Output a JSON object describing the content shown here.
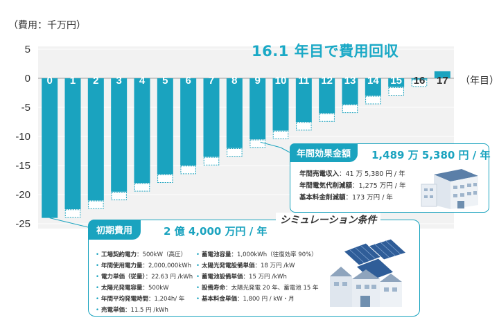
{
  "chart_data": {
    "type": "bar",
    "unit_label": "（費用：千万円）",
    "categories": [
      "0",
      "1",
      "2",
      "3",
      "4",
      "5",
      "6",
      "7",
      "8",
      "9",
      "10",
      "11",
      "12",
      "13",
      "14",
      "15",
      "16",
      "17"
    ],
    "values": [
      -24.0,
      -22.5,
      -21.0,
      -19.5,
      -18.0,
      -16.5,
      -15.0,
      -13.5,
      -12.0,
      -10.5,
      -9.0,
      -7.5,
      -6.0,
      -4.5,
      -3.0,
      -1.5,
      -0.2,
      1.2
    ],
    "annual_increment": 1.49,
    "ylim": [
      -25,
      5
    ],
    "yticks": [
      5,
      0,
      -5,
      -10,
      -15,
      -20,
      -25
    ],
    "ytick_labels": [
      "5",
      "0",
      "-5",
      "-10",
      "-15",
      "-20",
      "-25"
    ],
    "xlabel": "（年目）",
    "annotation": "16.1 年目で費用回収",
    "colors": {
      "bar": "#1aa3bf",
      "increment_outline": "#1aa3bf",
      "plot_bg": "#f2f2f2",
      "grid": "#ffffff"
    }
  },
  "annual_effect": {
    "tag": "年間効果金額",
    "total": "1,489 万 5,380 円 / 年",
    "lines": [
      {
        "label": "年間売電収入",
        "value": "：41 万 5,380 円 / 年"
      },
      {
        "label": "年間電気代削減額",
        "value": "：1,275 万円 / 年"
      },
      {
        "label": "基本料金削減額",
        "value": "：173 万円 / 年"
      }
    ]
  },
  "initial_cost": {
    "tag": "初期費用",
    "total": "2 億 4,000 万円 / 年"
  },
  "conditions": {
    "title": "シミュレーション条件",
    "left": [
      {
        "label": "工場契約電力",
        "value": "：500kW（高圧）"
      },
      {
        "label": "年間使用電力量",
        "value": "：2,000,000kWh"
      },
      {
        "label": "電力単価（従量）",
        "value": "：22.63 円 /kWh"
      },
      {
        "label": "太陽光発電容量",
        "value": "：500kW"
      },
      {
        "label": "年間平均発電時間",
        "value": "：1,204h/ 年"
      },
      {
        "label": "売電単価",
        "value": "：11.5 円 /kWh"
      }
    ],
    "right": [
      {
        "label": "蓄電池容量",
        "value": "：1,000kWh（往復効率 90%）"
      },
      {
        "label": "太陽光発電設備単価",
        "value": "：18 万円 /kW"
      },
      {
        "label": "蓄電池設備単価",
        "value": "：15 万円 /kWh"
      },
      {
        "label": "設備寿命",
        "value": "：太陽光発電 20 年、蓄電池 15 年"
      },
      {
        "label": "基本料金単価",
        "value": "：1,800 円 / kW・月"
      }
    ]
  }
}
